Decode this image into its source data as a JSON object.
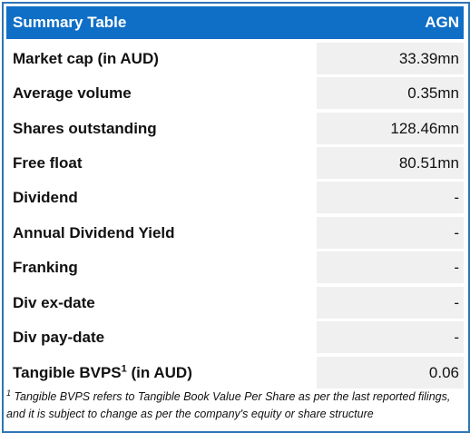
{
  "header": {
    "title": "Summary Table",
    "ticker": "AGN"
  },
  "rows": [
    {
      "label": "Market cap (in AUD)",
      "value": "33.39mn"
    },
    {
      "label": "Average volume",
      "value": "0.35mn"
    },
    {
      "label": "Shares outstanding",
      "value": "128.46mn"
    },
    {
      "label": "Free float",
      "value": "80.51mn"
    },
    {
      "label": "Dividend",
      "value": "-"
    },
    {
      "label": "Annual Dividend Yield",
      "value": "-"
    },
    {
      "label": "Franking",
      "value": "-"
    },
    {
      "label": "Div ex-date",
      "value": "-"
    },
    {
      "label": "Div pay-date",
      "value": "-"
    },
    {
      "label": "Tangible BVPS",
      "superscript": "1",
      "label_suffix": " (in AUD)",
      "value": "0.06"
    }
  ],
  "footnote": {
    "marker": "1",
    "text": "Tangible BVPS refers to Tangible Book Value Per Share as per the last reported filings, and it is subject to change as per the company's equity or share structure"
  },
  "colors": {
    "header_bg": "#0f6fc6",
    "border": "#2e75b6",
    "value_cell_bg": "#f0f0f0"
  }
}
